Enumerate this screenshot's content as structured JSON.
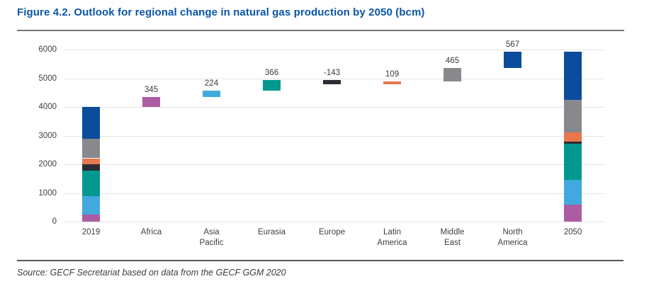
{
  "figure": {
    "title": "Figure 4.2. Outlook for regional change in natural gas production by 2050 (bcm)",
    "source": "Source: GECF Secretariat based on data from the GECF GGM 2020"
  },
  "colors": {
    "title_blue": "#0B55A8",
    "grid_gray": "#E4E4E4",
    "axis_text": "#3F3F3F",
    "divider_top": "#77787B",
    "divider_bottom": "#55565A"
  },
  "chart_data": {
    "type": "bar",
    "subtype": "waterfall with stacked 2019 and 2050 end bars",
    "title": "Figure 4.2. Outlook for regional change in natural gas production by 2050 (bcm)",
    "unit": "bcm",
    "xlabel": "",
    "ylabel": "bcm",
    "ylim": [
      0,
      6000
    ],
    "yticks": [
      0,
      1000,
      2000,
      3000,
      4000,
      5000,
      6000
    ],
    "grid": "horizontal",
    "legend": "none",
    "categories": [
      "2019",
      "Africa",
      "Asia Pacific",
      "Eurasia",
      "Europe",
      "Latin America",
      "Middle East",
      "North America",
      "2050"
    ],
    "x_label_lines": [
      [
        "2019"
      ],
      [
        "Africa"
      ],
      [
        "Asia",
        "Pacific"
      ],
      [
        "Eurasia"
      ],
      [
        "Europe"
      ],
      [
        "Latin",
        "America"
      ],
      [
        "Middle",
        "East"
      ],
      [
        "North",
        "America"
      ],
      [
        "2050"
      ]
    ],
    "regions": [
      {
        "name": "Africa",
        "color": "#AB5CA2",
        "value_2019": 245,
        "change": 345,
        "value_2050": 590
      },
      {
        "name": "Asia Pacific",
        "color": "#41A9DD",
        "value_2019": 650,
        "change": 224,
        "value_2050": 874
      },
      {
        "name": "Eurasia",
        "color": "#01998F",
        "value_2019": 885,
        "change": 366,
        "value_2050": 1251
      },
      {
        "name": "Europe",
        "color": "#2A2D33",
        "value_2019": 230,
        "change": -143,
        "value_2050": 87
      },
      {
        "name": "Latin America",
        "color": "#E8774E",
        "value_2019": 200,
        "change": 109,
        "value_2050": 309
      },
      {
        "name": "Middle East",
        "color": "#87898C",
        "value_2019": 670,
        "change": 465,
        "value_2050": 1135
      },
      {
        "name": "North America",
        "color": "#0B4C9C",
        "value_2019": 1120,
        "change": 567,
        "value_2050": 1687
      }
    ],
    "change_labels": [
      "345",
      "224",
      "366",
      "-143",
      "109",
      "465",
      "567"
    ],
    "totals": {
      "total_2019": 4000,
      "total_2050": 5933
    },
    "stacking_order_bottom_to_top": [
      "Africa",
      "Asia Pacific",
      "Eurasia",
      "Europe",
      "Latin America",
      "Middle East",
      "North America"
    ],
    "note_2019_2050_values_estimated_from_gridlines": true
  }
}
